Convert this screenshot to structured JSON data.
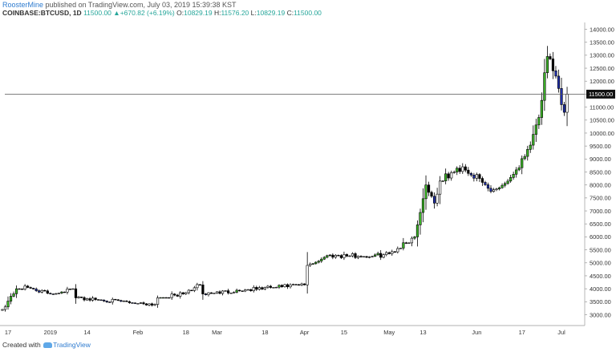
{
  "header": {
    "author": "RoosterMine",
    "published": "published on TradingView.com, July 03, 2019 15:39:38 KST",
    "symbol": "COINBASE:BTCUSD, 1D",
    "close_value": "11500.00",
    "change_arrow": "▲",
    "change": "+670.82 (+6.19%)",
    "o_label": "O:",
    "o_value": "10829.19",
    "h_label": "H:",
    "h_value": "11576.20",
    "l_label": "L:",
    "l_value": "10829.19",
    "c_label": "C:",
    "c_value": "11500.00"
  },
  "footer": {
    "prefix": "Created with",
    "brand": "TradingView"
  },
  "colors": {
    "up_normal": "#ffffff",
    "down_normal": "#000000",
    "up_streak": "#3cb527",
    "down_streak": "#1f2fa8",
    "current_price_line": "#555555",
    "price_label_bg": "#111111"
  },
  "chart_data": {
    "type": "candlestick",
    "title": "",
    "symbol": "BTCUSD",
    "exchange": "COINBASE",
    "interval": "1D",
    "ylim": [
      2800,
      14500
    ],
    "y_ticks": [
      "3000.00",
      "3500.00",
      "4000.00",
      "4500.00",
      "5000.00",
      "5500.00",
      "6000.00",
      "6500.00",
      "7000.00",
      "7500.00",
      "8000.00",
      "8500.00",
      "9000.00",
      "9500.00",
      "10000.00",
      "10500.00",
      "11000.00",
      "11500.00",
      "12000.00",
      "12500.00",
      "13000.00",
      "13500.00",
      "14000.00"
    ],
    "x_ticks": [
      {
        "label": "17",
        "date": "2018-12-17"
      },
      {
        "label": "2019",
        "date": "2019-01-01"
      },
      {
        "label": "14",
        "date": "2019-01-14"
      },
      {
        "label": "Feb",
        "date": "2019-02-01"
      },
      {
        "label": "18",
        "date": "2019-02-18"
      },
      {
        "label": "Mar",
        "date": "2019-03-01"
      },
      {
        "label": "18",
        "date": "2019-03-18"
      },
      {
        "label": "Apr",
        "date": "2019-04-01"
      },
      {
        "label": "15",
        "date": "2019-04-15"
      },
      {
        "label": "May",
        "date": "2019-05-01"
      },
      {
        "label": "13",
        "date": "2019-05-13"
      },
      {
        "label": "Jun",
        "date": "2019-06-01"
      },
      {
        "label": "17",
        "date": "2019-06-17"
      },
      {
        "label": "Jul",
        "date": "2019-07-01"
      }
    ],
    "current_price": 11500.0,
    "current_price_label": "11500.00",
    "grid": false,
    "legend": "none",
    "key_points": [
      {
        "date": "2018-12-15",
        "close": 3200
      },
      {
        "date": "2018-12-20",
        "close": 4000
      },
      {
        "date": "2018-12-24",
        "close": 4050
      },
      {
        "date": "2019-01-01",
        "close": 3800
      },
      {
        "date": "2019-01-09",
        "close": 4000
      },
      {
        "date": "2019-01-10",
        "close": 3650
      },
      {
        "date": "2019-02-07",
        "close": 3400
      },
      {
        "date": "2019-02-08",
        "close": 3650
      },
      {
        "date": "2019-02-17",
        "close": 3800
      },
      {
        "date": "2019-02-23",
        "close": 4150
      },
      {
        "date": "2019-02-24",
        "close": 3800
      },
      {
        "date": "2019-03-20",
        "close": 4050
      },
      {
        "date": "2019-04-01",
        "close": 4150
      },
      {
        "date": "2019-04-02",
        "close": 4900
      },
      {
        "date": "2019-04-10",
        "close": 5300
      },
      {
        "date": "2019-04-25",
        "close": 5250
      },
      {
        "date": "2019-05-01",
        "close": 5350
      },
      {
        "date": "2019-05-10",
        "close": 6000
      },
      {
        "date": "2019-05-14",
        "close": 8000
      },
      {
        "date": "2019-05-17",
        "close": 7300
      },
      {
        "date": "2019-05-19",
        "close": 8150
      },
      {
        "date": "2019-05-27",
        "close": 8700
      },
      {
        "date": "2019-06-03",
        "close": 8100
      },
      {
        "date": "2019-06-06",
        "close": 7750
      },
      {
        "date": "2019-06-12",
        "close": 8150
      },
      {
        "date": "2019-06-18",
        "close": 9100
      },
      {
        "date": "2019-06-23",
        "close": 10600
      },
      {
        "date": "2019-06-26",
        "close": 12950
      },
      {
        "date": "2019-06-28",
        "close": 12400
      },
      {
        "date": "2019-07-02",
        "close": 10800
      },
      {
        "date": "2019-07-03",
        "close": 11500
      }
    ]
  }
}
